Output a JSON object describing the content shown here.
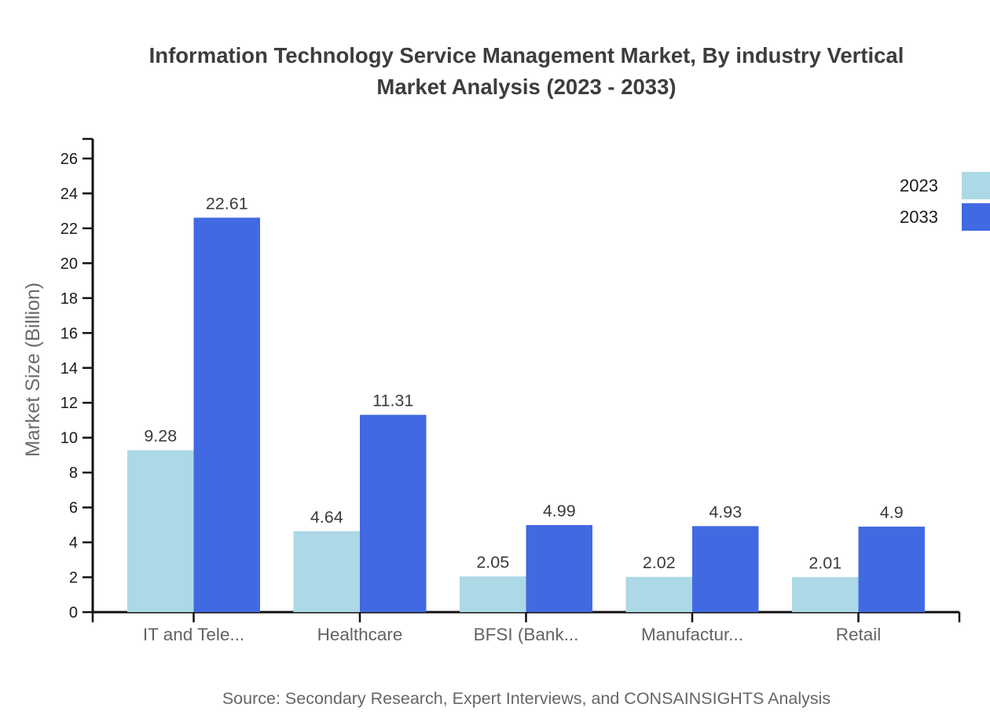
{
  "title": "Information Technology Service Management Market, By industry Vertical Market Analysis (2023 - 2033)",
  "title_lines": [
    "Information Technology Service Management Market, By industry Vertical",
    "Market Analysis (2023 - 2033)"
  ],
  "source": "Source: Secondary Research, Expert Interviews, and CONSAINSIGHTS Analysis",
  "legend": {
    "items": [
      {
        "label": "2023",
        "color": "#ADD8E6"
      },
      {
        "label": "2033",
        "color": "#4169E1"
      }
    ]
  },
  "colors": {
    "series_2023": "#ADD8E6",
    "series_2033": "#4169E1",
    "axis": "#111111",
    "tick_label": "#1a1a1a",
    "category_label": "#636363",
    "value_label": "#3a3a3a",
    "title_text": "#3d3d3d",
    "muted_text": "#666666"
  },
  "chart_data": {
    "type": "bar",
    "title": "Information Technology Service Management Market, By industry Vertical Market Analysis (2023 - 2033)",
    "xlabel": "",
    "ylabel": "Market Size (Billion)",
    "categories": [
      "IT and Tele...",
      "Healthcare",
      "BFSI (Bank...",
      "Manufactur...",
      "Retail"
    ],
    "series": [
      {
        "name": "2023",
        "color": "#ADD8E6",
        "values": [
          9.28,
          4.64,
          2.05,
          2.02,
          2.01
        ]
      },
      {
        "name": "2033",
        "color": "#4169E1",
        "values": [
          22.61,
          11.31,
          4.99,
          4.93,
          4.9
        ]
      }
    ],
    "value_labels": {
      "2023": [
        "9.28",
        "4.64",
        "2.05",
        "2.02",
        "2.01"
      ],
      "2033": [
        "22.61",
        "11.31",
        "4.99",
        "4.93",
        "4.9"
      ]
    },
    "y_ticks": [
      0,
      2,
      4,
      6,
      8,
      10,
      12,
      14,
      16,
      18,
      20,
      22,
      24,
      26
    ],
    "ylim": [
      0,
      27.1
    ],
    "grid": false,
    "legend_position": "top-right"
  }
}
